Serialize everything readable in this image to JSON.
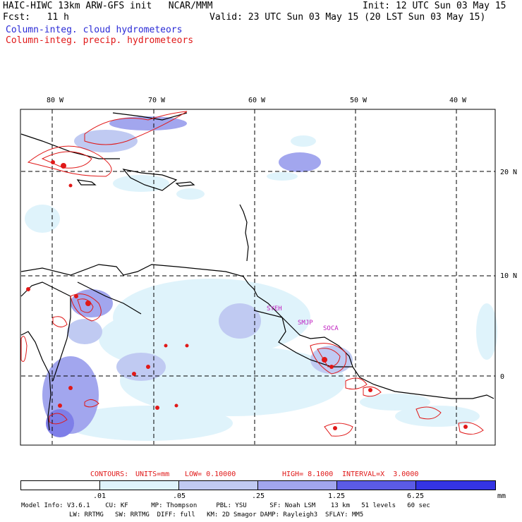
{
  "header": {
    "title": "HAIC-HIWC 13km ARW-GFS init   NCAR/MMM",
    "init": "Init: 12 UTC Sun 03 May 15",
    "fcst": "Fcst:   11 h",
    "valid": "Valid: 23 UTC Sun 03 May 15 (20 LST Sun 03 May 15)",
    "field_cloud": "Column-integ. cloud hydrometeors",
    "field_precip": "Column-integ. precip. hydrometeors"
  },
  "map": {
    "lon_labels": [
      "80 W",
      "70 W",
      "60 W",
      "50 W",
      "40 W"
    ],
    "lat_labels": [
      "20 N",
      "10 N",
      "0"
    ],
    "place_labels": [
      "SYEH",
      "SMJP",
      "SOCA"
    ]
  },
  "contour_info": {
    "label": "CONTOURS:",
    "units": "UNITS=mm",
    "low": "LOW= 0.10000",
    "high": "HIGH= 8.1000",
    "interval": "INTERVAL=X  3.0000"
  },
  "colorbar": {
    "ticks": [
      ".01",
      ".05",
      ".25",
      "1.25",
      "6.25"
    ],
    "unit": "mm",
    "colors": [
      "#ffffff",
      "#dff3fb",
      "#c0caf2",
      "#a2a6ee",
      "#7e7ee8",
      "#5b5be6",
      "#3434e4"
    ]
  },
  "footer": {
    "line1": "Model Info: V3.6.1    CU: KF      MP: Thompson     PBL: YSU      SF: Noah LSM    13 km   51 levels   60 sec",
    "line2": "LW: RRTMG   SW: RRTMG  DIFF: full   KM: 2D Smagor DAMP: Rayleigh3  SFLAY: MM5"
  }
}
